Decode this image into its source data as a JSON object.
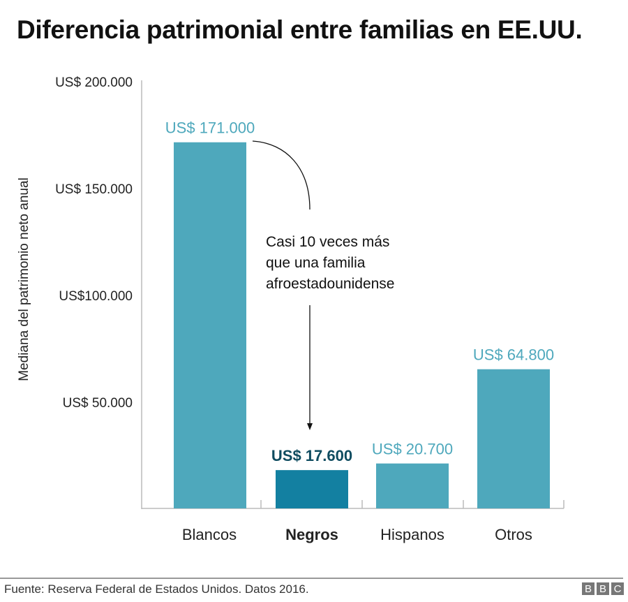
{
  "chart_data": {
    "type": "bar",
    "title": "Diferencia patrimonial entre familias en EE.UU.",
    "ylabel": "Mediana del patrimonio neto anual",
    "xlabel": "",
    "ylim": [
      0,
      200000
    ],
    "yticks": [
      {
        "value": 50000,
        "label": "US$ 50.000"
      },
      {
        "value": 100000,
        "label": "US$100.000"
      },
      {
        "value": 150000,
        "label": "US$ 150.000"
      },
      {
        "value": 200000,
        "label": "US$ 200.000"
      }
    ],
    "categories": [
      "Blancos",
      "Negros",
      "Hispanos",
      "Otros"
    ],
    "values": [
      171000,
      17600,
      20700,
      64800
    ],
    "data_labels": [
      "US$ 171.000",
      "US$ 17.600",
      "US$ 20.700",
      "US$ 64.800"
    ],
    "highlight": "Negros",
    "annotation": [
      "Casi 10 veces más",
      "que una familia",
      "afroestadounidense"
    ],
    "colors": {
      "bar": "#4ea8bc",
      "highlight": "#1380a1",
      "highlight_label": "#0f4c60",
      "label": "#4ea8bc"
    }
  },
  "footer": {
    "source": "Fuente: Reserva Federal de Estados Unidos. Datos 2016.",
    "logo": [
      "B",
      "B",
      "C"
    ]
  }
}
